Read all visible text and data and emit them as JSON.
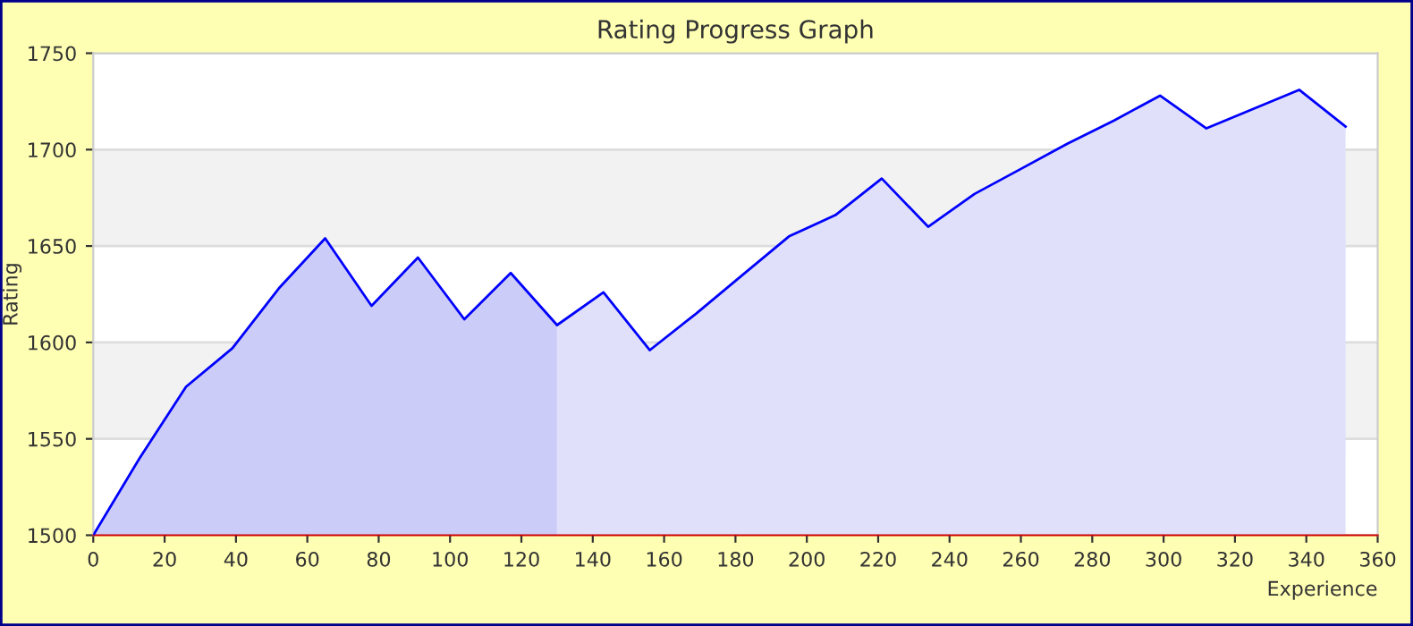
{
  "chart_data": {
    "type": "area",
    "title": "Rating Progress Graph",
    "xlabel": "Experience",
    "ylabel": "Rating",
    "series": [
      {
        "color": "#ccccf8",
        "x": [
          0,
          13,
          26,
          39,
          52,
          65,
          78,
          91,
          104,
          117,
          130
        ],
        "values": [
          1500,
          1540,
          1577,
          1597,
          1628,
          1654,
          1619,
          1644,
          1612,
          1636,
          1609
        ]
      },
      {
        "color": "#e0e0fa",
        "x": [
          130,
          143,
          156,
          169,
          182,
          195,
          208,
          221,
          234,
          247,
          260,
          273,
          286,
          299,
          312,
          325,
          338,
          351
        ],
        "values": [
          1609,
          1626,
          1596,
          1615,
          1635,
          1655,
          1666,
          1685,
          1660,
          1677,
          1690,
          1703,
          1715,
          1728,
          1711,
          1721,
          1731,
          1712
        ]
      },
      {
        "type": "line",
        "color": "#0000ff",
        "x": [
          0,
          13,
          26,
          39,
          52,
          65,
          78,
          91,
          104,
          117,
          130,
          143,
          156,
          169,
          182,
          195,
          208,
          221,
          234,
          247,
          260,
          273,
          286,
          299,
          312,
          325,
          338,
          351
        ],
        "values": [
          1500,
          1540,
          1577,
          1597,
          1628,
          1654,
          1619,
          1644,
          1612,
          1636,
          1609,
          1626,
          1596,
          1615,
          1635,
          1655,
          1666,
          1685,
          1660,
          1677,
          1690,
          1703,
          1715,
          1728,
          1711,
          1721,
          1731,
          1712
        ]
      }
    ],
    "bands": [
      {
        "axis": "y",
        "from": 1550,
        "to": 1600,
        "color": "#f2f2f2"
      },
      {
        "axis": "y",
        "from": 1650,
        "to": 1700,
        "color": "#f2f2f2"
      }
    ],
    "xlim": [
      0,
      360
    ],
    "xticks": [
      0,
      20,
      40,
      60,
      80,
      100,
      120,
      140,
      160,
      180,
      200,
      220,
      240,
      260,
      280,
      300,
      320,
      340,
      360
    ],
    "ylim": [
      1500,
      1750
    ],
    "yticks": [
      1500,
      1550,
      1600,
      1650,
      1700,
      1750
    ],
    "grid": "y",
    "legend": false,
    "marker": "none",
    "line_style": "solid"
  }
}
